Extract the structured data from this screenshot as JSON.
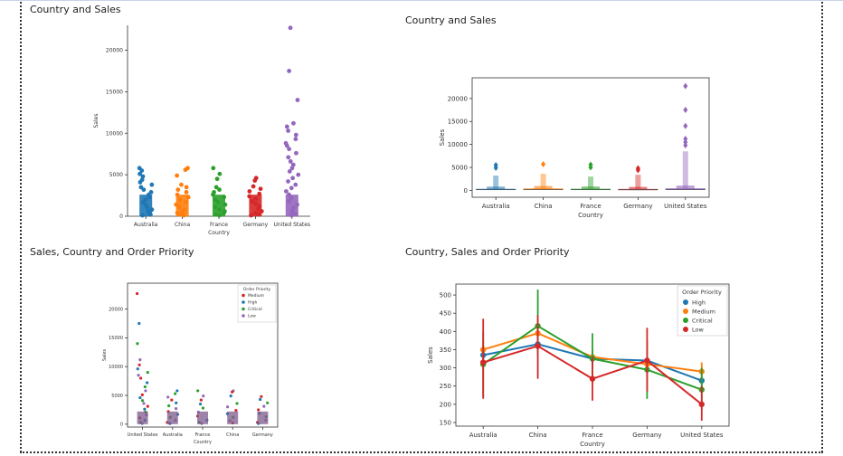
{
  "panels": {
    "p1": {
      "title": "Country and Sales"
    },
    "p2": {
      "title": "Country and Sales"
    },
    "p3": {
      "title": "Sales, Country and Order Priority"
    },
    "p4": {
      "title": "Country, Sales and Order Priority"
    }
  },
  "chart_data": [
    {
      "id": "strip1",
      "type": "scatter",
      "subtype": "strip",
      "title": "Country and Sales",
      "xlabel": "Country",
      "ylabel": "Sales",
      "categories": [
        "Australia",
        "China",
        "France",
        "Germany",
        "United States"
      ],
      "yticks": [
        0,
        5000,
        10000,
        15000,
        20000
      ],
      "ylim": [
        0,
        23000
      ],
      "colors": [
        "#1f77b4",
        "#ff7f0e",
        "#2ca02c",
        "#d62728",
        "#9467bd"
      ],
      "series": [
        {
          "values": [
            5800,
            5500,
            5100,
            4800,
            4400,
            4100,
            3800,
            3500,
            3200,
            2900,
            2600,
            2300,
            2000,
            1700,
            1400,
            1100,
            800,
            600,
            400,
            200,
            100
          ]
        },
        {
          "values": [
            5800,
            5600,
            4900,
            3800,
            3500,
            3200,
            2900,
            2600,
            2300,
            2000,
            1700,
            1400,
            1100,
            800,
            600,
            400,
            200,
            100
          ]
        },
        {
          "values": [
            5800,
            5100,
            4500,
            3500,
            3200,
            2900,
            2600,
            2300,
            2000,
            1700,
            1400,
            1100,
            800,
            600,
            400,
            200,
            100
          ]
        },
        {
          "values": [
            4600,
            4300,
            3600,
            3300,
            3000,
            2700,
            2400,
            2100,
            1800,
            1500,
            1200,
            900,
            600,
            400,
            200,
            100
          ]
        },
        {
          "values": [
            22700,
            17500,
            14000,
            11200,
            10800,
            10300,
            9800,
            9300,
            8800,
            8500,
            8100,
            7600,
            7100,
            6600,
            6200,
            5800,
            5400,
            5000,
            4600,
            4200,
            3800,
            3400,
            3000,
            2600,
            2200,
            1800,
            1400,
            1000,
            600,
            300,
            100
          ]
        }
      ]
    },
    {
      "id": "boxen2",
      "type": "boxen",
      "title": "Country and Sales",
      "xlabel": "Country",
      "ylabel": "Sales",
      "categories": [
        "Australia",
        "China",
        "France",
        "Germany",
        "United States"
      ],
      "yticks": [
        0,
        5000,
        10000,
        15000,
        20000
      ],
      "ylim": [
        -1500,
        24500
      ],
      "colors": [
        "#1f77b4",
        "#ff7f0e",
        "#2ca02c",
        "#d62728",
        "#9467bd"
      ],
      "series": [
        {
          "median": 150,
          "q1": 70,
          "q3": 320,
          "tail": 3200,
          "outliers": [
            5500,
            4900
          ]
        },
        {
          "median": 180,
          "q1": 80,
          "q3": 380,
          "tail": 3600,
          "outliers": [
            5700
          ]
        },
        {
          "median": 150,
          "q1": 70,
          "q3": 330,
          "tail": 3000,
          "outliers": [
            5600,
            5000
          ]
        },
        {
          "median": 140,
          "q1": 60,
          "q3": 300,
          "tail": 3400,
          "outliers": [
            4800,
            4400
          ]
        },
        {
          "median": 200,
          "q1": 90,
          "q3": 420,
          "tail": 8500,
          "outliers": [
            22700,
            17500,
            14000,
            11200,
            10500,
            9800
          ]
        }
      ]
    },
    {
      "id": "strip3",
      "type": "scatter",
      "subtype": "strip",
      "title": "Sales, Country and Order Priority",
      "xlabel": "Country",
      "ylabel": "Sales",
      "categories": [
        "United States",
        "Australia",
        "France",
        "China",
        "Germany"
      ],
      "yticks": [
        0,
        5000,
        10000,
        15000,
        20000
      ],
      "ylim": [
        -500,
        24500
      ],
      "legend": {
        "title": "Order Priority",
        "position": "top-right",
        "entries": [
          {
            "name": "Medium",
            "color": "#d62728"
          },
          {
            "name": "High",
            "color": "#1f77b4"
          },
          {
            "name": "Critical",
            "color": "#2ca02c"
          },
          {
            "name": "Low",
            "color": "#9467bd"
          }
        ]
      },
      "series": [
        {
          "values": [
            22700,
            17500,
            14000,
            11200,
            10300,
            9600,
            9000,
            8500,
            8000,
            7200,
            6500,
            5800,
            5100,
            4600,
            4100,
            3600,
            3100,
            2600,
            2100,
            1600,
            1100,
            700,
            300,
            100
          ]
        },
        {
          "values": [
            5800,
            5300,
            4700,
            4200,
            3700,
            3200,
            2700,
            2200,
            1700,
            1200,
            700,
            300,
            100
          ]
        },
        {
          "values": [
            5800,
            4900,
            4200,
            3500,
            2800,
            2100,
            1400,
            700,
            300,
            100
          ]
        },
        {
          "values": [
            5800,
            5600,
            4900,
            3600,
            3000,
            2400,
            1800,
            1200,
            600,
            200
          ]
        },
        {
          "values": [
            4800,
            4300,
            3700,
            3100,
            2500,
            1900,
            1300,
            700,
            300,
            100
          ]
        }
      ]
    },
    {
      "id": "point4",
      "type": "line",
      "subtype": "pointplot",
      "title": "Country, Sales and Order Priority",
      "xlabel": "Country",
      "ylabel": "Sales",
      "categories": [
        "Australia",
        "China",
        "France",
        "Germany",
        "United States"
      ],
      "yticks": [
        150,
        200,
        250,
        300,
        350,
        400,
        450,
        500
      ],
      "ylim": [
        140,
        530
      ],
      "legend": {
        "title": "Order Priority",
        "position": "top-right"
      },
      "series": [
        {
          "name": "High",
          "color": "#1f77b4",
          "values": [
            335,
            365,
            325,
            320,
            265
          ],
          "lo": [
            320,
            345,
            310,
            305,
            250
          ],
          "hi": [
            350,
            385,
            340,
            335,
            280
          ]
        },
        {
          "name": "Medium",
          "color": "#ff7f0e",
          "values": [
            350,
            395,
            330,
            310,
            290
          ],
          "lo": [
            330,
            370,
            310,
            290,
            268
          ],
          "hi": [
            370,
            420,
            350,
            330,
            315
          ]
        },
        {
          "name": "Critical",
          "color": "#2ca02c",
          "values": [
            310,
            415,
            325,
            295,
            240
          ],
          "lo": [
            220,
            330,
            260,
            215,
            185
          ],
          "hi": [
            400,
            515,
            395,
            375,
            300
          ]
        },
        {
          "name": "Low",
          "color": "#d62728",
          "values": [
            315,
            360,
            270,
            320,
            200
          ],
          "lo": [
            215,
            270,
            210,
            235,
            155
          ],
          "hi": [
            435,
            445,
            330,
            410,
            250
          ]
        }
      ]
    }
  ]
}
